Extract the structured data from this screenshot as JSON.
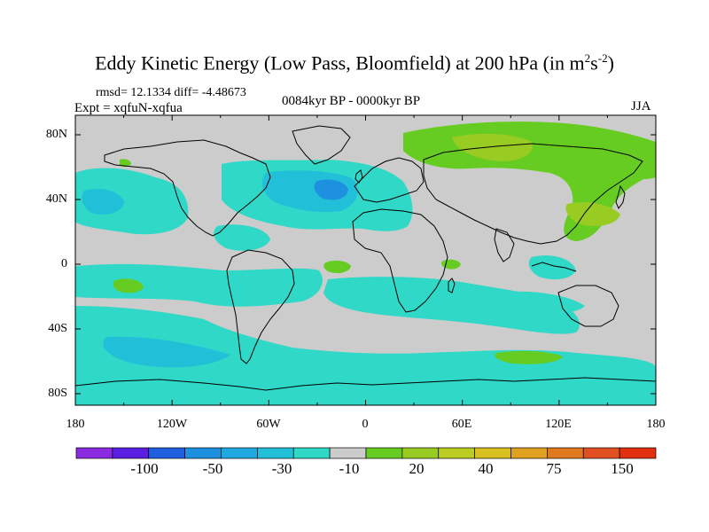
{
  "title": {
    "main": "Eddy Kinetic Energy (Low Pass, Bloomfield) at 200 hPa (in m",
    "sup1": "2",
    "mid": "s",
    "sup2": "-2",
    "close": ")"
  },
  "stats": "rmsd= 12.1334 diff= -4.48673",
  "expt": "Expt = xqfuN-xqfua",
  "period": "0084kyr BP - 0000kyr BP",
  "season": "JJA",
  "axes": {
    "y_ticks": [
      "80N",
      "40N",
      "0",
      "40S",
      "80S"
    ],
    "x_ticks": [
      "180",
      "120W",
      "60W",
      "0",
      "60E",
      "120E",
      "180"
    ]
  },
  "colorbar": {
    "labels": [
      "-100",
      "-50",
      "-30",
      "-10",
      "20",
      "40",
      "75",
      "150"
    ],
    "colors": [
      "#8a2be2",
      "#5a1fe0",
      "#2060e0",
      "#1e90e0",
      "#20a8e0",
      "#22c0d8",
      "#30d8c8",
      "#cccccc",
      "#66cc22",
      "#99cc22",
      "#bbcc22",
      "#d8c020",
      "#e0a020",
      "#e07820",
      "#e05020",
      "#e03010"
    ]
  },
  "map_colors": {
    "background": "#cccccc",
    "cyan": "#30d8c8",
    "cyan_mid": "#22c0d8",
    "blue": "#1e90e0",
    "green": "#66cc22",
    "yellow_green": "#99cc22",
    "coast": "#000000"
  }
}
